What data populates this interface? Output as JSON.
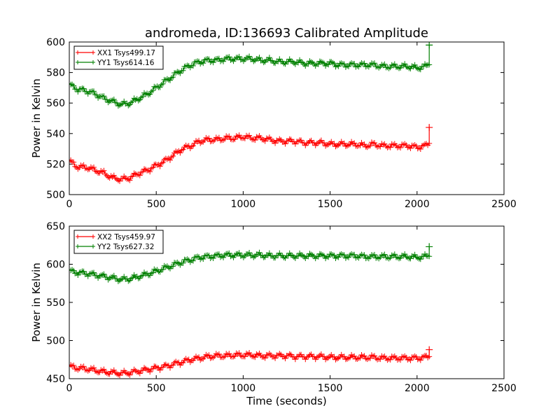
{
  "figure": {
    "title": "andromeda, ID:136693 Calibrated Amplitude",
    "xlabel": "Time (seconds)"
  },
  "chart_data": [
    {
      "type": "line",
      "ylabel": "Power in Kelvin",
      "xlim": [
        0,
        2500
      ],
      "ylim": [
        500,
        600
      ],
      "xticks": [
        "0",
        "500",
        "1000",
        "1500",
        "2000",
        "2500"
      ],
      "yticks": [
        "500",
        "520",
        "540",
        "560",
        "580",
        "600"
      ],
      "legend": "top-left",
      "grid": false,
      "x": [
        0,
        50,
        100,
        150,
        200,
        250,
        300,
        350,
        400,
        450,
        500,
        550,
        600,
        650,
        700,
        750,
        800,
        850,
        900,
        950,
        1000,
        1050,
        1100,
        1150,
        1200,
        1250,
        1300,
        1350,
        1400,
        1450,
        1500,
        1550,
        1600,
        1650,
        1700,
        1750,
        1800,
        1850,
        1900,
        1950,
        2000,
        2050,
        2070
      ],
      "series": [
        {
          "name": "XX1 Tsys499.17",
          "color": "#ff0000",
          "values": [
            522,
            518,
            518,
            516,
            514,
            511,
            510,
            511,
            514,
            516,
            519,
            522,
            526,
            530,
            532,
            535,
            536,
            536,
            537,
            537,
            538,
            537,
            537,
            536,
            535,
            535,
            535,
            534,
            534,
            534,
            533,
            533,
            533,
            533,
            532,
            533,
            532,
            532,
            532,
            532,
            531,
            532,
            534
          ],
          "end_spike": 544
        },
        {
          "name": "YY1 Tsys614.16",
          "color": "#008000",
          "values": [
            572,
            569,
            568,
            566,
            563,
            561,
            559,
            560,
            563,
            566,
            570,
            574,
            578,
            582,
            585,
            587,
            588,
            588,
            589,
            589,
            589,
            589,
            588,
            588,
            587,
            587,
            587,
            586,
            586,
            586,
            586,
            585,
            585,
            585,
            585,
            585,
            584,
            584,
            584,
            584,
            583,
            584,
            586
          ],
          "end_spike": 598
        }
      ]
    },
    {
      "type": "line",
      "ylabel": "Power in Kelvin",
      "xlim": [
        0,
        2500
      ],
      "ylim": [
        450,
        650
      ],
      "xticks": [
        "0",
        "500",
        "1000",
        "1500",
        "2000",
        "2500"
      ],
      "yticks": [
        "450",
        "500",
        "550",
        "600",
        "650"
      ],
      "legend": "top-left",
      "grid": false,
      "x": [
        0,
        50,
        100,
        150,
        200,
        250,
        300,
        350,
        400,
        450,
        500,
        550,
        600,
        650,
        700,
        750,
        800,
        850,
        900,
        950,
        1000,
        1050,
        1100,
        1150,
        1200,
        1250,
        1300,
        1350,
        1400,
        1450,
        1500,
        1550,
        1600,
        1650,
        1700,
        1750,
        1800,
        1850,
        1900,
        1950,
        2000,
        2050,
        2070
      ],
      "series": [
        {
          "name": "XX2 Tsys459.97",
          "color": "#ff0000",
          "values": [
            466,
            464,
            463,
            461,
            459,
            458,
            457,
            458,
            460,
            462,
            464,
            466,
            469,
            472,
            475,
            477,
            479,
            480,
            480,
            481,
            481,
            481,
            480,
            480,
            480,
            480,
            479,
            479,
            479,
            479,
            478,
            478,
            478,
            478,
            478,
            478,
            477,
            477,
            477,
            477,
            477,
            478,
            480
          ],
          "end_spike": 488
        },
        {
          "name": "YY2 Tsys627.32",
          "color": "#008000",
          "values": [
            591,
            589,
            588,
            586,
            584,
            582,
            580,
            581,
            584,
            587,
            591,
            595,
            599,
            603,
            606,
            609,
            610,
            611,
            612,
            612,
            612,
            612,
            612,
            611,
            611,
            611,
            611,
            611,
            611,
            611,
            611,
            611,
            611,
            611,
            610,
            610,
            610,
            610,
            610,
            610,
            609,
            610,
            612
          ],
          "end_spike": 623
        }
      ]
    }
  ]
}
